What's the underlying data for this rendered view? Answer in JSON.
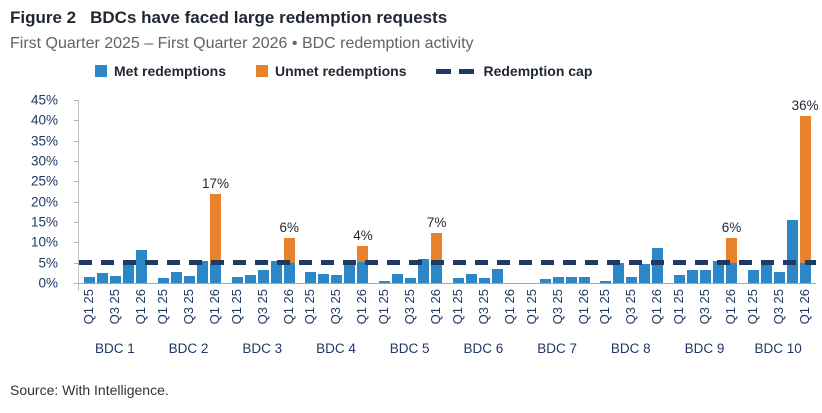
{
  "figure": {
    "label": "Figure 2",
    "title": "BDCs have faced large redemption requests",
    "subtitle": "First Quarter 2025 – First Quarter 2026 • BDC redemption activity",
    "source": "Source: With Intelligence."
  },
  "legend": [
    {
      "name": "met-redemptions",
      "label": "Met redemptions",
      "swatch": "square",
      "color": "#2c87c6"
    },
    {
      "name": "unmet-redemptions",
      "label": "Unmet redemptions",
      "swatch": "square",
      "color": "#e8822d"
    },
    {
      "name": "redemption-cap",
      "label": "Redemption cap",
      "swatch": "dash",
      "color": "#1f3864"
    }
  ],
  "colors": {
    "met_blue": "#2c87c6",
    "unmet_orange": "#e8822d",
    "cap_navy": "#1f3864",
    "axis_text": "#1f3864",
    "title_text": "#1f2733",
    "subtitle_gray": "#636363"
  },
  "chart_data": {
    "type": "bar",
    "stacked": true,
    "unit": "%",
    "ylim": [
      0,
      45
    ],
    "y_tick_step": 5,
    "y_tick_labels": [
      "45%",
      "40%",
      "35%",
      "30%",
      "25%",
      "20%",
      "15%",
      "10%",
      "5%",
      "0%"
    ],
    "x_tick_labels_per_group": [
      "Q1 25",
      "",
      "Q3 25",
      "",
      "Q1 26"
    ],
    "quarters_per_group": 5,
    "redemption_cap_pct": 5,
    "grid": false,
    "legend_position": "top",
    "series_names": [
      "Met redemptions",
      "Unmet redemptions"
    ],
    "groups": [
      {
        "label": "BDC 1",
        "met": [
          1.5,
          2.5,
          1.7,
          4.7,
          8.0
        ],
        "unmet": [
          0,
          0,
          0,
          0,
          0
        ],
        "unmet_label": ""
      },
      {
        "label": "BDC 2",
        "met": [
          1.3,
          2.8,
          1.7,
          5.3,
          5.0
        ],
        "unmet": [
          0,
          0,
          0,
          0,
          17
        ],
        "unmet_label": "17%"
      },
      {
        "label": "BDC 3",
        "met": [
          1.4,
          1.9,
          3.1,
          5.3,
          5.0
        ],
        "unmet": [
          0,
          0,
          0,
          0,
          6
        ],
        "unmet_label": "6%"
      },
      {
        "label": "BDC 4",
        "met": [
          2.8,
          2.3,
          1.9,
          4.4,
          5.2
        ],
        "unmet": [
          0,
          0,
          0,
          0,
          4
        ],
        "unmet_label": "4%"
      },
      {
        "label": "BDC 5",
        "met": [
          0.5,
          2.2,
          1.2,
          5.8,
          5.2
        ],
        "unmet": [
          0,
          0,
          0,
          0,
          7
        ],
        "unmet_label": "7%"
      },
      {
        "label": "BDC 6",
        "met": [
          1.2,
          2.1,
          1.2,
          3.4,
          0
        ],
        "unmet": [
          0,
          0,
          0,
          0,
          0
        ],
        "unmet_label": ""
      },
      {
        "label": "BDC 7",
        "met": [
          0,
          1.0,
          1.5,
          1.6,
          1.5
        ],
        "unmet": [
          0,
          0,
          0,
          0,
          0
        ],
        "unmet_label": ""
      },
      {
        "label": "BDC 8",
        "met": [
          0.6,
          5.0,
          1.5,
          4.6,
          8.5
        ],
        "unmet": [
          0,
          0,
          0,
          0,
          0
        ],
        "unmet_label": ""
      },
      {
        "label": "BDC 9",
        "met": [
          2.0,
          3.2,
          3.2,
          5.3,
          5.0
        ],
        "unmet": [
          0,
          0,
          0,
          0,
          6
        ],
        "unmet_label": "6%"
      },
      {
        "label": "BDC 10",
        "met": [
          3.3,
          4.6,
          2.6,
          15.5,
          5.0
        ],
        "unmet": [
          0,
          0,
          0,
          0,
          36
        ],
        "unmet_label": "36%"
      }
    ]
  }
}
